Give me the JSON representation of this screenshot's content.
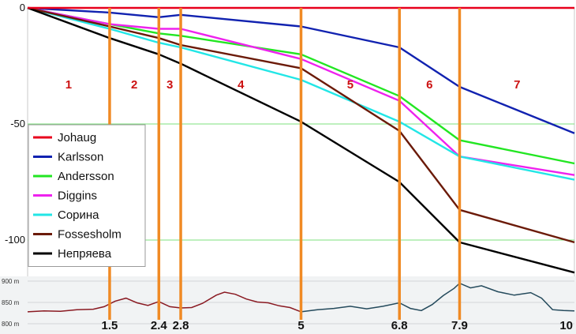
{
  "chart_data": [
    {
      "type": "line",
      "title": "",
      "xlabel": "",
      "ylabel": "",
      "x": [
        0,
        1.5,
        2.4,
        2.8,
        5,
        6.8,
        7.9,
        10
      ],
      "ylim": [
        -113,
        0
      ],
      "yticks": [
        0,
        -50,
        -100
      ],
      "grid": "horizontal",
      "legend_position": "bottom-left",
      "series": [
        {
          "name": "Johaug",
          "color": "#e8001c",
          "values": [
            0,
            0,
            0,
            0,
            0,
            0,
            0,
            0
          ]
        },
        {
          "name": "Karlsson",
          "color": "#1122b0",
          "values": [
            0,
            -2,
            -4,
            -3,
            -8,
            -17,
            -34,
            -54
          ]
        },
        {
          "name": "Andersson",
          "color": "#22e622",
          "values": [
            0,
            -7,
            -11,
            -12,
            -20,
            -38,
            -57,
            -67
          ]
        },
        {
          "name": "Diggins",
          "color": "#ee22ee",
          "values": [
            0,
            -7,
            -9,
            -9,
            -22,
            -40,
            -64,
            -72
          ]
        },
        {
          "name": "Сорина",
          "color": "#22e6e6",
          "values": [
            0,
            -9,
            -15,
            -17,
            -31,
            -49,
            -64,
            -74
          ]
        },
        {
          "name": "Fossesholm",
          "color": "#6b1a08",
          "values": [
            0,
            -8,
            -13,
            -16,
            -26,
            -53,
            -87,
            -101
          ]
        },
        {
          "name": "Непряева",
          "color": "#000000",
          "values": [
            0,
            -13,
            -20,
            -24,
            -49,
            -75,
            -101,
            -114
          ]
        }
      ],
      "segments": [
        "1",
        "2",
        "3",
        "4",
        "5",
        "6",
        "7"
      ],
      "x_tick_labels": [
        "1.5",
        "2.4",
        "2.8",
        "5",
        "6.8",
        "7.9",
        "10"
      ],
      "marker_color": "#f08a24",
      "segment_label_color": "#cc1111"
    },
    {
      "type": "area",
      "title": "",
      "ylabel": "",
      "ylim": [
        800,
        900
      ],
      "ytick_labels": [
        "900 m",
        "850 m",
        "800 m"
      ],
      "profile": [
        [
          0,
          828
        ],
        [
          0.3,
          830
        ],
        [
          0.6,
          829
        ],
        [
          0.9,
          833
        ],
        [
          1.2,
          834
        ],
        [
          1.4,
          840
        ],
        [
          1.6,
          853
        ],
        [
          1.8,
          860
        ],
        [
          2.0,
          849
        ],
        [
          2.2,
          843
        ],
        [
          2.4,
          852
        ],
        [
          2.6,
          840
        ],
        [
          2.8,
          837
        ],
        [
          3.0,
          838
        ],
        [
          3.2,
          848
        ],
        [
          3.45,
          867
        ],
        [
          3.6,
          874
        ],
        [
          3.8,
          869
        ],
        [
          4.0,
          858
        ],
        [
          4.2,
          851
        ],
        [
          4.4,
          849
        ],
        [
          4.6,
          842
        ],
        [
          4.8,
          838
        ],
        [
          5.0,
          828
        ],
        [
          5.3,
          833
        ],
        [
          5.6,
          836
        ],
        [
          5.9,
          841
        ],
        [
          6.2,
          835
        ],
        [
          6.5,
          841
        ],
        [
          6.8,
          849
        ],
        [
          7.0,
          836
        ],
        [
          7.2,
          831
        ],
        [
          7.4,
          845
        ],
        [
          7.6,
          866
        ],
        [
          7.8,
          883
        ],
        [
          7.9,
          895
        ],
        [
          8.1,
          884
        ],
        [
          8.3,
          889
        ],
        [
          8.6,
          875
        ],
        [
          8.9,
          867
        ],
        [
          9.2,
          873
        ],
        [
          9.4,
          860
        ],
        [
          9.6,
          833
        ],
        [
          9.8,
          831
        ],
        [
          10,
          830
        ]
      ],
      "color_first_part": "#8a1a22",
      "color_second_part": "#244a5c",
      "color_change_at": 5
    }
  ]
}
